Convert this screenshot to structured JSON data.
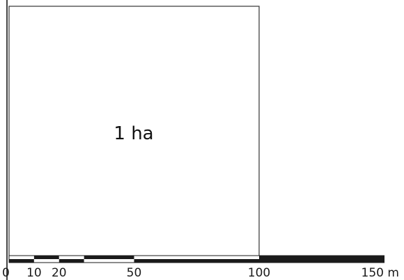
{
  "square": {
    "label": "1 ha"
  },
  "scale_bar": {
    "unit": "m",
    "max_value": 150,
    "segments": [
      {
        "from": 0,
        "to": 10,
        "upper": "white",
        "lower": "black"
      },
      {
        "from": 10,
        "to": 20,
        "upper": "black",
        "lower": "white"
      },
      {
        "from": 20,
        "to": 30,
        "upper": "white",
        "lower": "black"
      },
      {
        "from": 30,
        "to": 50,
        "upper": "black",
        "lower": "white"
      },
      {
        "from": 50,
        "to": 100,
        "upper": "white",
        "lower": "black"
      },
      {
        "from": 100,
        "to": 150,
        "upper": "black",
        "lower": "black"
      }
    ],
    "tick_labels": [
      "0",
      "10",
      "20",
      "50",
      "100",
      "150 m"
    ],
    "tick_values": [
      0,
      10,
      20,
      50,
      100,
      150
    ]
  },
  "colors": {
    "line": "#1a1a1a",
    "fill": "#ffffff"
  }
}
